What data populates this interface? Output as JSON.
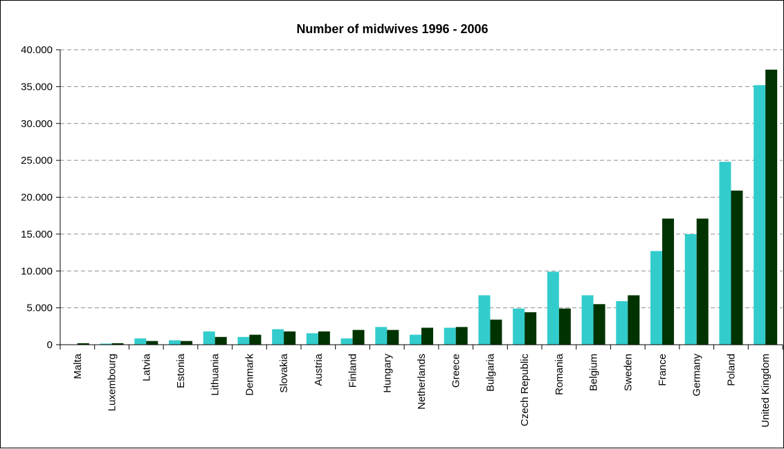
{
  "chart_data": {
    "type": "bar",
    "title": "Number of midwives 1996 - 2006",
    "xlabel": "",
    "ylabel": "",
    "ylim": [
      0,
      40000
    ],
    "yticks": [
      0,
      5000,
      10000,
      15000,
      20000,
      25000,
      30000,
      35000,
      40000
    ],
    "ytick_labels": [
      "0",
      "5.000",
      "10.000",
      "15.000",
      "20.000",
      "25.000",
      "30.000",
      "35.000",
      "40.000"
    ],
    "grid": "horizontal dashed",
    "legend": "none",
    "categories": [
      "Malta",
      "Luxembourg",
      "Latvia",
      "Estonia",
      "Lithuania",
      "Denmark",
      "Slovakia",
      "Austria",
      "Finland",
      "Hungary",
      "Netherlands",
      "Greece",
      "Bulgaria",
      "Czech Republic",
      "Romania",
      "Belgium",
      "Sweden",
      "France",
      "Germany",
      "Poland",
      "United Kingdom"
    ],
    "series": [
      {
        "color": "#33CCCC",
        "values": [
          0,
          150,
          850,
          600,
          1800,
          1050,
          2100,
          1550,
          850,
          2400,
          1350,
          2300,
          6700,
          4900,
          9900,
          6700,
          5900,
          12700,
          15000,
          24800,
          35200
        ]
      },
      {
        "color": "#003300",
        "values": [
          200,
          200,
          500,
          500,
          1050,
          1350,
          1800,
          1800,
          2000,
          2000,
          2300,
          2400,
          3400,
          4400,
          4900,
          5500,
          6700,
          17100,
          17100,
          20900,
          37300
        ]
      }
    ]
  }
}
